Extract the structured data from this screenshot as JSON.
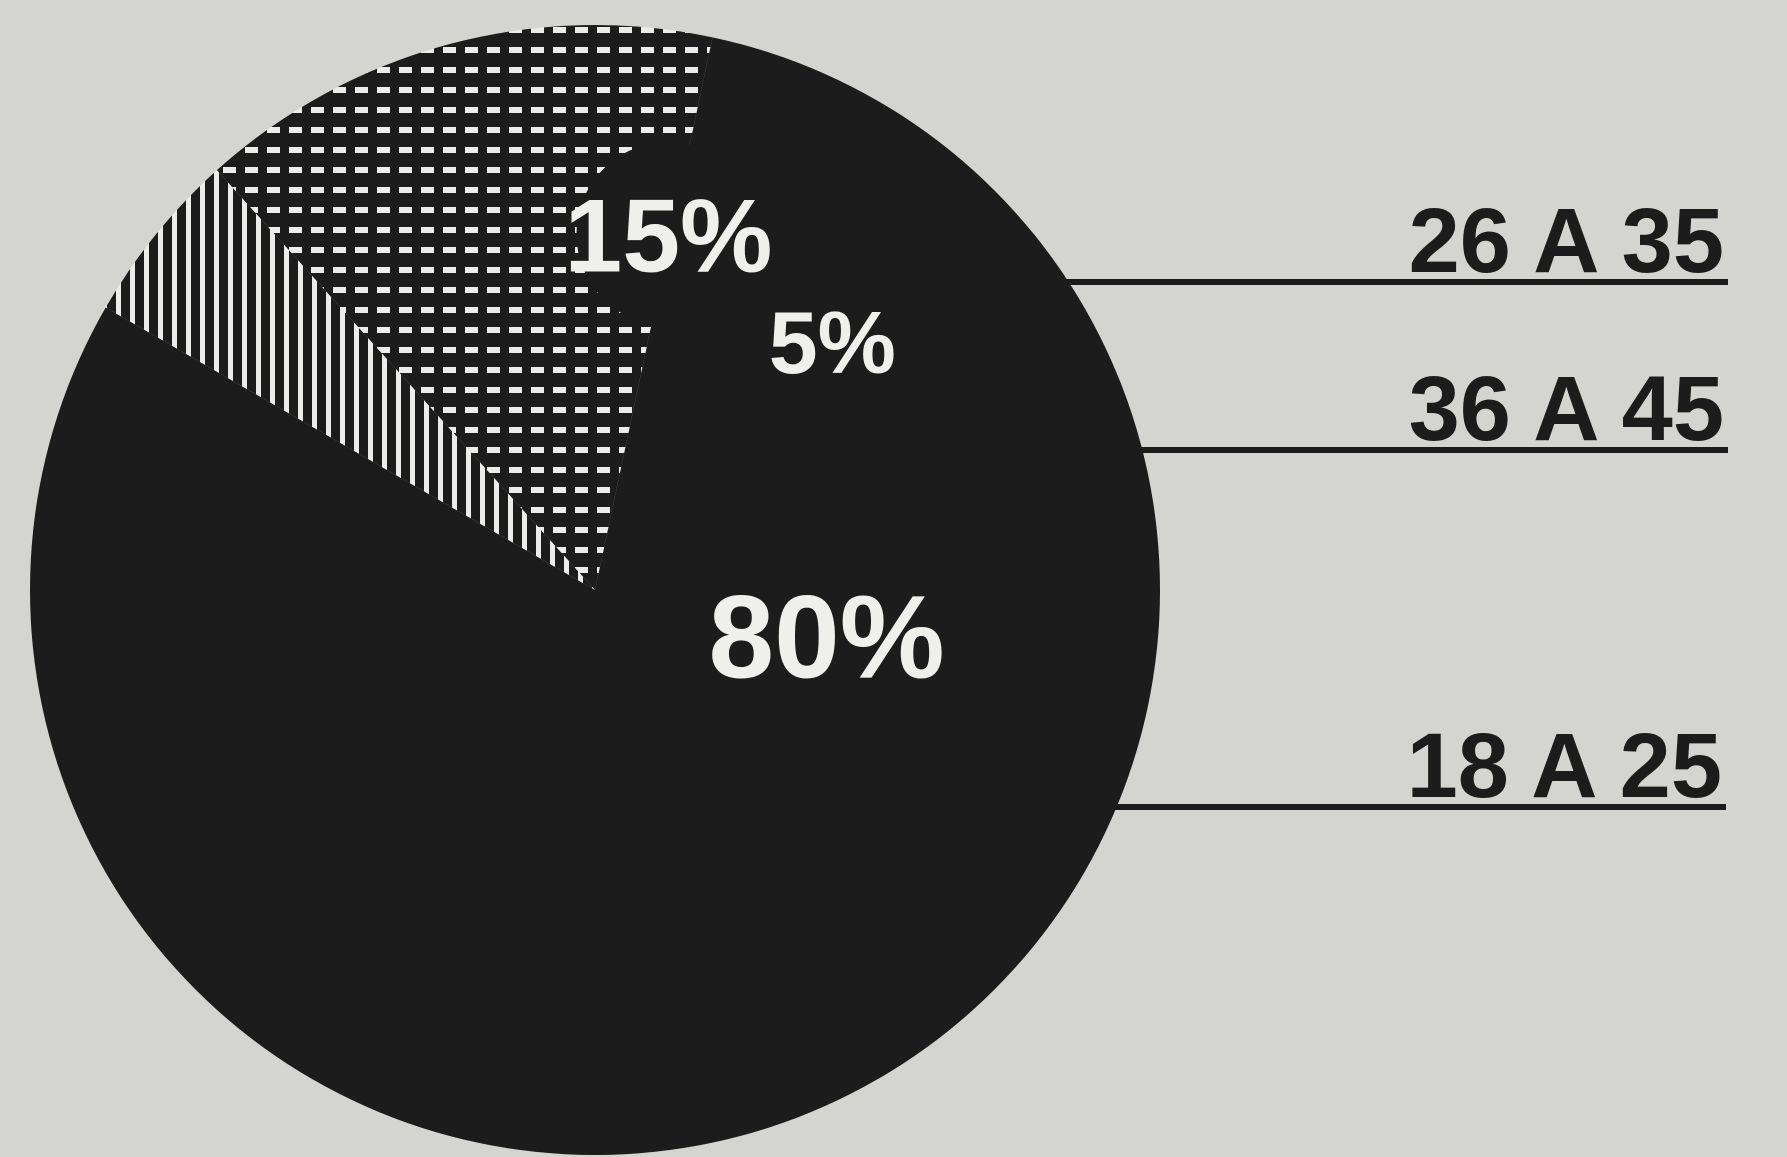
{
  "chart_data": {
    "type": "pie",
    "slices": [
      {
        "label": "18 A 25",
        "value": 80,
        "value_label": "80%",
        "pattern": "solid"
      },
      {
        "label": "36 A 45",
        "value": 5,
        "value_label": "5%",
        "pattern": "vertical-lines"
      },
      {
        "label": "26 A 35",
        "value": 15,
        "value_label": "15%",
        "pattern": "dashes"
      }
    ],
    "legend_placement": "right",
    "colors": {
      "background": "#d4d4d1",
      "ink": "#1c1c1c",
      "highlight": "#efefec"
    }
  }
}
